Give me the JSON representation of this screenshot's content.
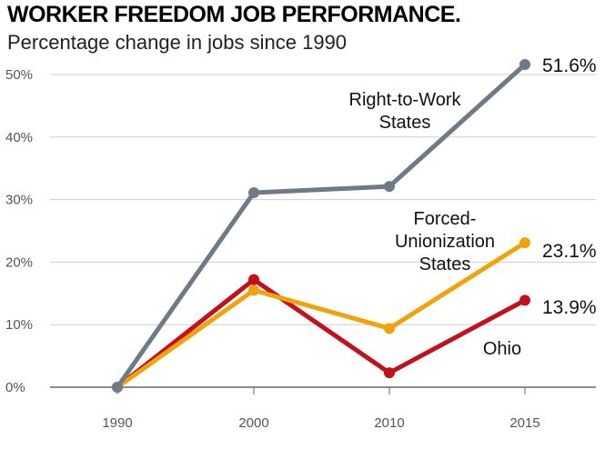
{
  "title": "WORKER FREEDOM JOB PERFORMANCE.",
  "subtitle": "Percentage change in jobs since 1990",
  "chart_data": {
    "type": "line",
    "title": "WORKER FREEDOM JOB PERFORMANCE.",
    "subtitle": "Percentage change in jobs since 1990",
    "x": [
      1990,
      2000,
      2010,
      2015
    ],
    "xticks": [
      "1990",
      "2000",
      "2010",
      "2015"
    ],
    "yticks": [
      "0%",
      "10%",
      "20%",
      "30%",
      "40%",
      "50%"
    ],
    "ylim": [
      0,
      50
    ],
    "grid": true,
    "legend": "none",
    "series": [
      {
        "name": "Right-to-Work States",
        "label_lines": [
          "Right-to-Work",
          "States"
        ],
        "values": [
          0,
          31.1,
          32.1,
          51.6
        ],
        "end_label": "51.6%",
        "color": "#6e7b87"
      },
      {
        "name": "Forced-Unionization States",
        "label_lines": [
          "Forced-",
          "Unionization",
          "States"
        ],
        "values": [
          0,
          15.5,
          9.4,
          23.1
        ],
        "end_label": "23.1%",
        "color": "#f0a30a"
      },
      {
        "name": "Ohio",
        "label_lines": [
          "Ohio"
        ],
        "values": [
          0,
          17.2,
          2.3,
          13.9
        ],
        "end_label": "13.9%",
        "color": "#c1121c"
      }
    ]
  }
}
